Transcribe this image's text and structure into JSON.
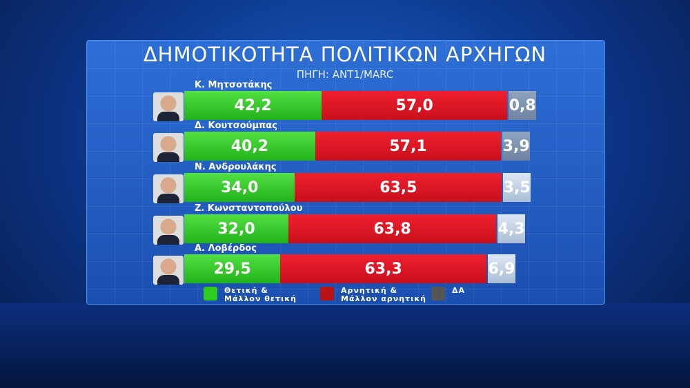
{
  "chart_data": {
    "type": "bar",
    "stacked": true,
    "orientation": "horizontal",
    "title": "ΔΗΜΟΤΙΚΟΤΗΤΑ ΠΟΛΙΤΙΚΩΝ ΑΡΧΗΓΩΝ",
    "subtitle": "ΠΗΓΗ: ΑΝΤ1/MARC",
    "categories": [
      "Κ. Μητσοτάκης",
      "Δ. Κουτσούμπας",
      "Ν. Ανδρουλάκης",
      "Ζ. Κωνσταντοπούλου",
      "Α. Λοβέρδος"
    ],
    "series": [
      {
        "name": "Θετική & Μάλλον θετική",
        "color": "#2ecc1f",
        "values": [
          42.2,
          40.2,
          34.0,
          32.0,
          29.5
        ],
        "labels": [
          "42,2",
          "40,2",
          "34,0",
          "32,0",
          "29,5"
        ]
      },
      {
        "name": "Αρνητική & Μάλλον αρνητική",
        "color": "#e0101e",
        "values": [
          57.0,
          57.1,
          63.5,
          63.8,
          63.3
        ],
        "labels": [
          "57,0",
          "57,1",
          "63,5",
          "63,8",
          "63,3"
        ]
      },
      {
        "name": "ΔΑ",
        "color": "#555555",
        "values": [
          0.8,
          3.9,
          3.5,
          4.3,
          6.9
        ],
        "labels": [
          "0,8",
          "3,9",
          "3,5",
          "4,3",
          "6,9"
        ]
      }
    ],
    "legend_position": "bottom"
  }
}
